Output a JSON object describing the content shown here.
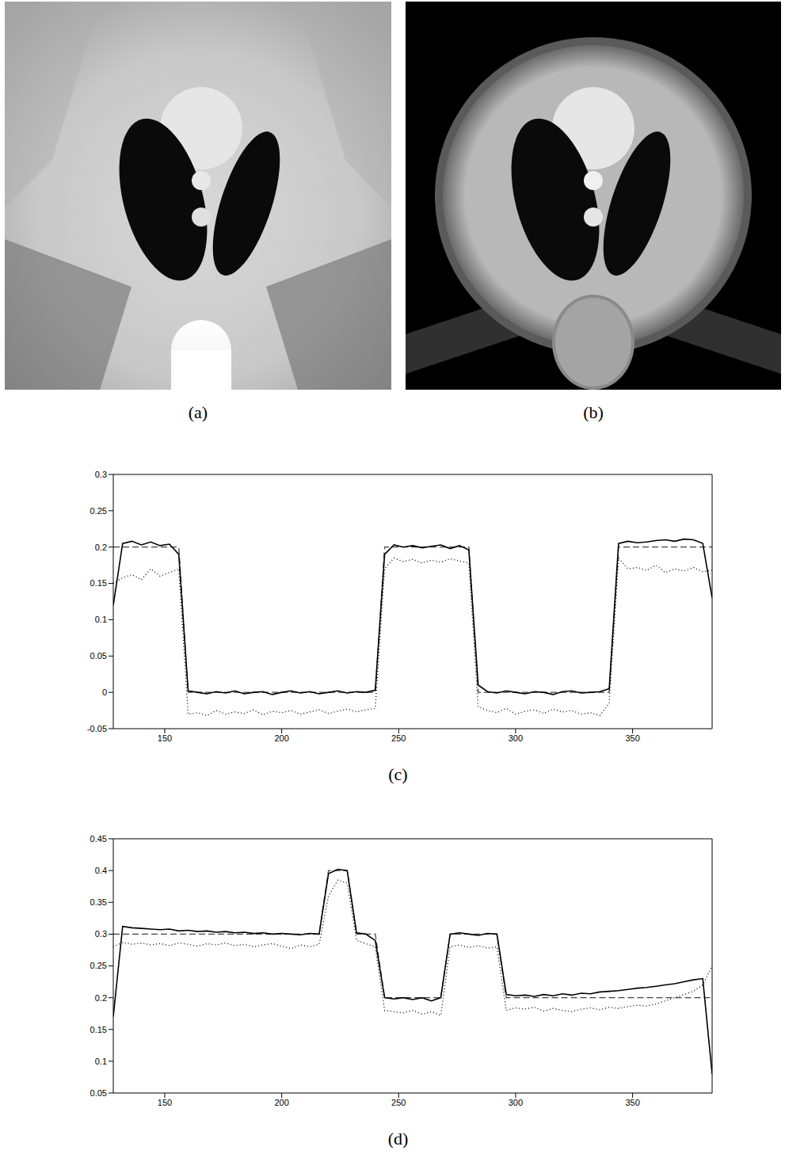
{
  "images": [
    {
      "title": "(a)"
    },
    {
      "title": "(b)"
    }
  ],
  "chart_data": [
    {
      "type": "line",
      "title": "(c)",
      "grid": false,
      "x": [
        128,
        132,
        136,
        140,
        144,
        148,
        152,
        156,
        160,
        164,
        168,
        172,
        176,
        180,
        184,
        188,
        192,
        196,
        200,
        204,
        208,
        212,
        216,
        220,
        224,
        228,
        232,
        236,
        240,
        244,
        248,
        252,
        256,
        260,
        264,
        268,
        272,
        276,
        280,
        284,
        288,
        292,
        296,
        300,
        304,
        308,
        312,
        316,
        320,
        324,
        328,
        332,
        336,
        340,
        344,
        348,
        352,
        356,
        360,
        364,
        368,
        372,
        376,
        380,
        384
      ],
      "xlim": [
        128,
        384
      ],
      "xticks": [
        150,
        200,
        250,
        300,
        350
      ],
      "ylim": [
        -0.05,
        0.3
      ],
      "yticks": [
        -0.05,
        0,
        0.05,
        0.1,
        0.15,
        0.2,
        0.25,
        0.3
      ],
      "series": [
        {
          "color": "#444444",
          "line_style": "dashed",
          "values": [
            0.2,
            0.2,
            0.2,
            0.2,
            0.2,
            0.2,
            0.2,
            0.2,
            0,
            0,
            0,
            0,
            0,
            0,
            0,
            0,
            0,
            0,
            0,
            0,
            0,
            0,
            0,
            0,
            0,
            0,
            0,
            0,
            0,
            0.2,
            0.2,
            0.2,
            0.2,
            0.2,
            0.2,
            0.2,
            0.2,
            0.2,
            0.2,
            0,
            0,
            0,
            0,
            0,
            0,
            0,
            0,
            0,
            0,
            0,
            0,
            0,
            0,
            0,
            0.2,
            0.2,
            0.2,
            0.2,
            0.2,
            0.2,
            0.2,
            0.2,
            0.2,
            0.2,
            0.2
          ]
        },
        {
          "color": "#000000",
          "line_style": "solid",
          "values": [
            0.12,
            0.205,
            0.208,
            0.203,
            0.207,
            0.202,
            0.204,
            0.19,
            0.002,
            0.0,
            -0.002,
            0.001,
            -0.001,
            0.002,
            -0.002,
            0.0,
            0.001,
            -0.003,
            0.0,
            0.002,
            -0.001,
            0.001,
            -0.002,
            0.0,
            0.002,
            -0.001,
            0.001,
            0.0,
            0.003,
            0.19,
            0.203,
            0.2,
            0.202,
            0.199,
            0.201,
            0.203,
            0.198,
            0.202,
            0.196,
            0.01,
            0.001,
            -0.001,
            0.002,
            0.0,
            -0.002,
            0.001,
            0.0,
            -0.003,
            0.001,
            0.002,
            -0.001,
            0.0,
            0.001,
            0.005,
            0.205,
            0.208,
            0.206,
            0.207,
            0.209,
            0.21,
            0.208,
            0.211,
            0.21,
            0.205,
            0.13
          ]
        },
        {
          "color": "#000000",
          "line_style": "dotted",
          "values": [
            0.15,
            0.158,
            0.162,
            0.155,
            0.17,
            0.16,
            0.165,
            0.17,
            -0.03,
            -0.028,
            -0.032,
            -0.025,
            -0.03,
            -0.027,
            -0.029,
            -0.024,
            -0.031,
            -0.026,
            -0.028,
            -0.025,
            -0.03,
            -0.027,
            -0.024,
            -0.029,
            -0.026,
            -0.023,
            -0.027,
            -0.024,
            -0.022,
            0.17,
            0.185,
            0.18,
            0.183,
            0.178,
            0.182,
            0.179,
            0.184,
            0.181,
            0.178,
            -0.02,
            -0.025,
            -0.028,
            -0.022,
            -0.03,
            -0.026,
            -0.024,
            -0.029,
            -0.023,
            -0.027,
            -0.025,
            -0.03,
            -0.028,
            -0.032,
            -0.015,
            0.185,
            0.17,
            0.172,
            0.168,
            0.175,
            0.165,
            0.17,
            0.167,
            0.172,
            0.166,
            0.168
          ]
        }
      ]
    },
    {
      "type": "line",
      "title": "(d)",
      "grid": false,
      "x": [
        128,
        132,
        136,
        140,
        144,
        148,
        152,
        156,
        160,
        164,
        168,
        172,
        176,
        180,
        184,
        188,
        192,
        196,
        200,
        204,
        208,
        212,
        216,
        220,
        224,
        228,
        232,
        236,
        240,
        244,
        248,
        252,
        256,
        260,
        264,
        268,
        272,
        276,
        280,
        284,
        288,
        292,
        296,
        300,
        304,
        308,
        312,
        316,
        320,
        324,
        328,
        332,
        336,
        340,
        344,
        348,
        352,
        356,
        360,
        364,
        368,
        372,
        376,
        380,
        384
      ],
      "xlim": [
        128,
        384
      ],
      "xticks": [
        150,
        200,
        250,
        300,
        350
      ],
      "ylim": [
        0.05,
        0.45
      ],
      "yticks": [
        0.05,
        0.1,
        0.15,
        0.2,
        0.25,
        0.3,
        0.35,
        0.4,
        0.45
      ],
      "series": [
        {
          "color": "#444444",
          "line_style": "dashed",
          "values": [
            0.3,
            0.3,
            0.3,
            0.3,
            0.3,
            0.3,
            0.3,
            0.3,
            0.3,
            0.3,
            0.3,
            0.3,
            0.3,
            0.3,
            0.3,
            0.3,
            0.3,
            0.3,
            0.3,
            0.3,
            0.3,
            0.3,
            0.3,
            0.4,
            0.4,
            0.4,
            0.3,
            0.3,
            0.3,
            0.2,
            0.2,
            0.2,
            0.2,
            0.2,
            0.2,
            0.2,
            0.3,
            0.3,
            0.3,
            0.3,
            0.3,
            0.3,
            0.2,
            0.2,
            0.2,
            0.2,
            0.2,
            0.2,
            0.2,
            0.2,
            0.2,
            0.2,
            0.2,
            0.2,
            0.2,
            0.2,
            0.2,
            0.2,
            0.2,
            0.2,
            0.2,
            0.2,
            0.2,
            0.2,
            0.2
          ]
        },
        {
          "color": "#000000",
          "line_style": "solid",
          "values": [
            0.17,
            0.312,
            0.31,
            0.309,
            0.308,
            0.307,
            0.308,
            0.305,
            0.306,
            0.304,
            0.305,
            0.303,
            0.304,
            0.302,
            0.303,
            0.301,
            0.302,
            0.3,
            0.301,
            0.3,
            0.299,
            0.301,
            0.3,
            0.395,
            0.402,
            0.4,
            0.302,
            0.3,
            0.29,
            0.2,
            0.198,
            0.2,
            0.197,
            0.2,
            0.195,
            0.2,
            0.3,
            0.302,
            0.3,
            0.298,
            0.301,
            0.3,
            0.205,
            0.203,
            0.204,
            0.202,
            0.205,
            0.203,
            0.206,
            0.204,
            0.207,
            0.206,
            0.209,
            0.21,
            0.211,
            0.213,
            0.215,
            0.216,
            0.218,
            0.22,
            0.222,
            0.225,
            0.228,
            0.23,
            0.08
          ]
        },
        {
          "color": "#000000",
          "line_style": "dotted",
          "values": [
            0.28,
            0.287,
            0.284,
            0.286,
            0.283,
            0.285,
            0.282,
            0.286,
            0.284,
            0.281,
            0.285,
            0.283,
            0.286,
            0.282,
            0.284,
            0.28,
            0.283,
            0.285,
            0.281,
            0.277,
            0.283,
            0.28,
            0.284,
            0.36,
            0.385,
            0.38,
            0.29,
            0.285,
            0.28,
            0.18,
            0.178,
            0.176,
            0.18,
            0.174,
            0.178,
            0.172,
            0.28,
            0.283,
            0.279,
            0.282,
            0.278,
            0.28,
            0.18,
            0.184,
            0.182,
            0.185,
            0.179,
            0.183,
            0.18,
            0.178,
            0.182,
            0.184,
            0.181,
            0.185,
            0.183,
            0.186,
            0.188,
            0.187,
            0.19,
            0.195,
            0.2,
            0.205,
            0.21,
            0.22,
            0.25
          ]
        }
      ]
    }
  ]
}
